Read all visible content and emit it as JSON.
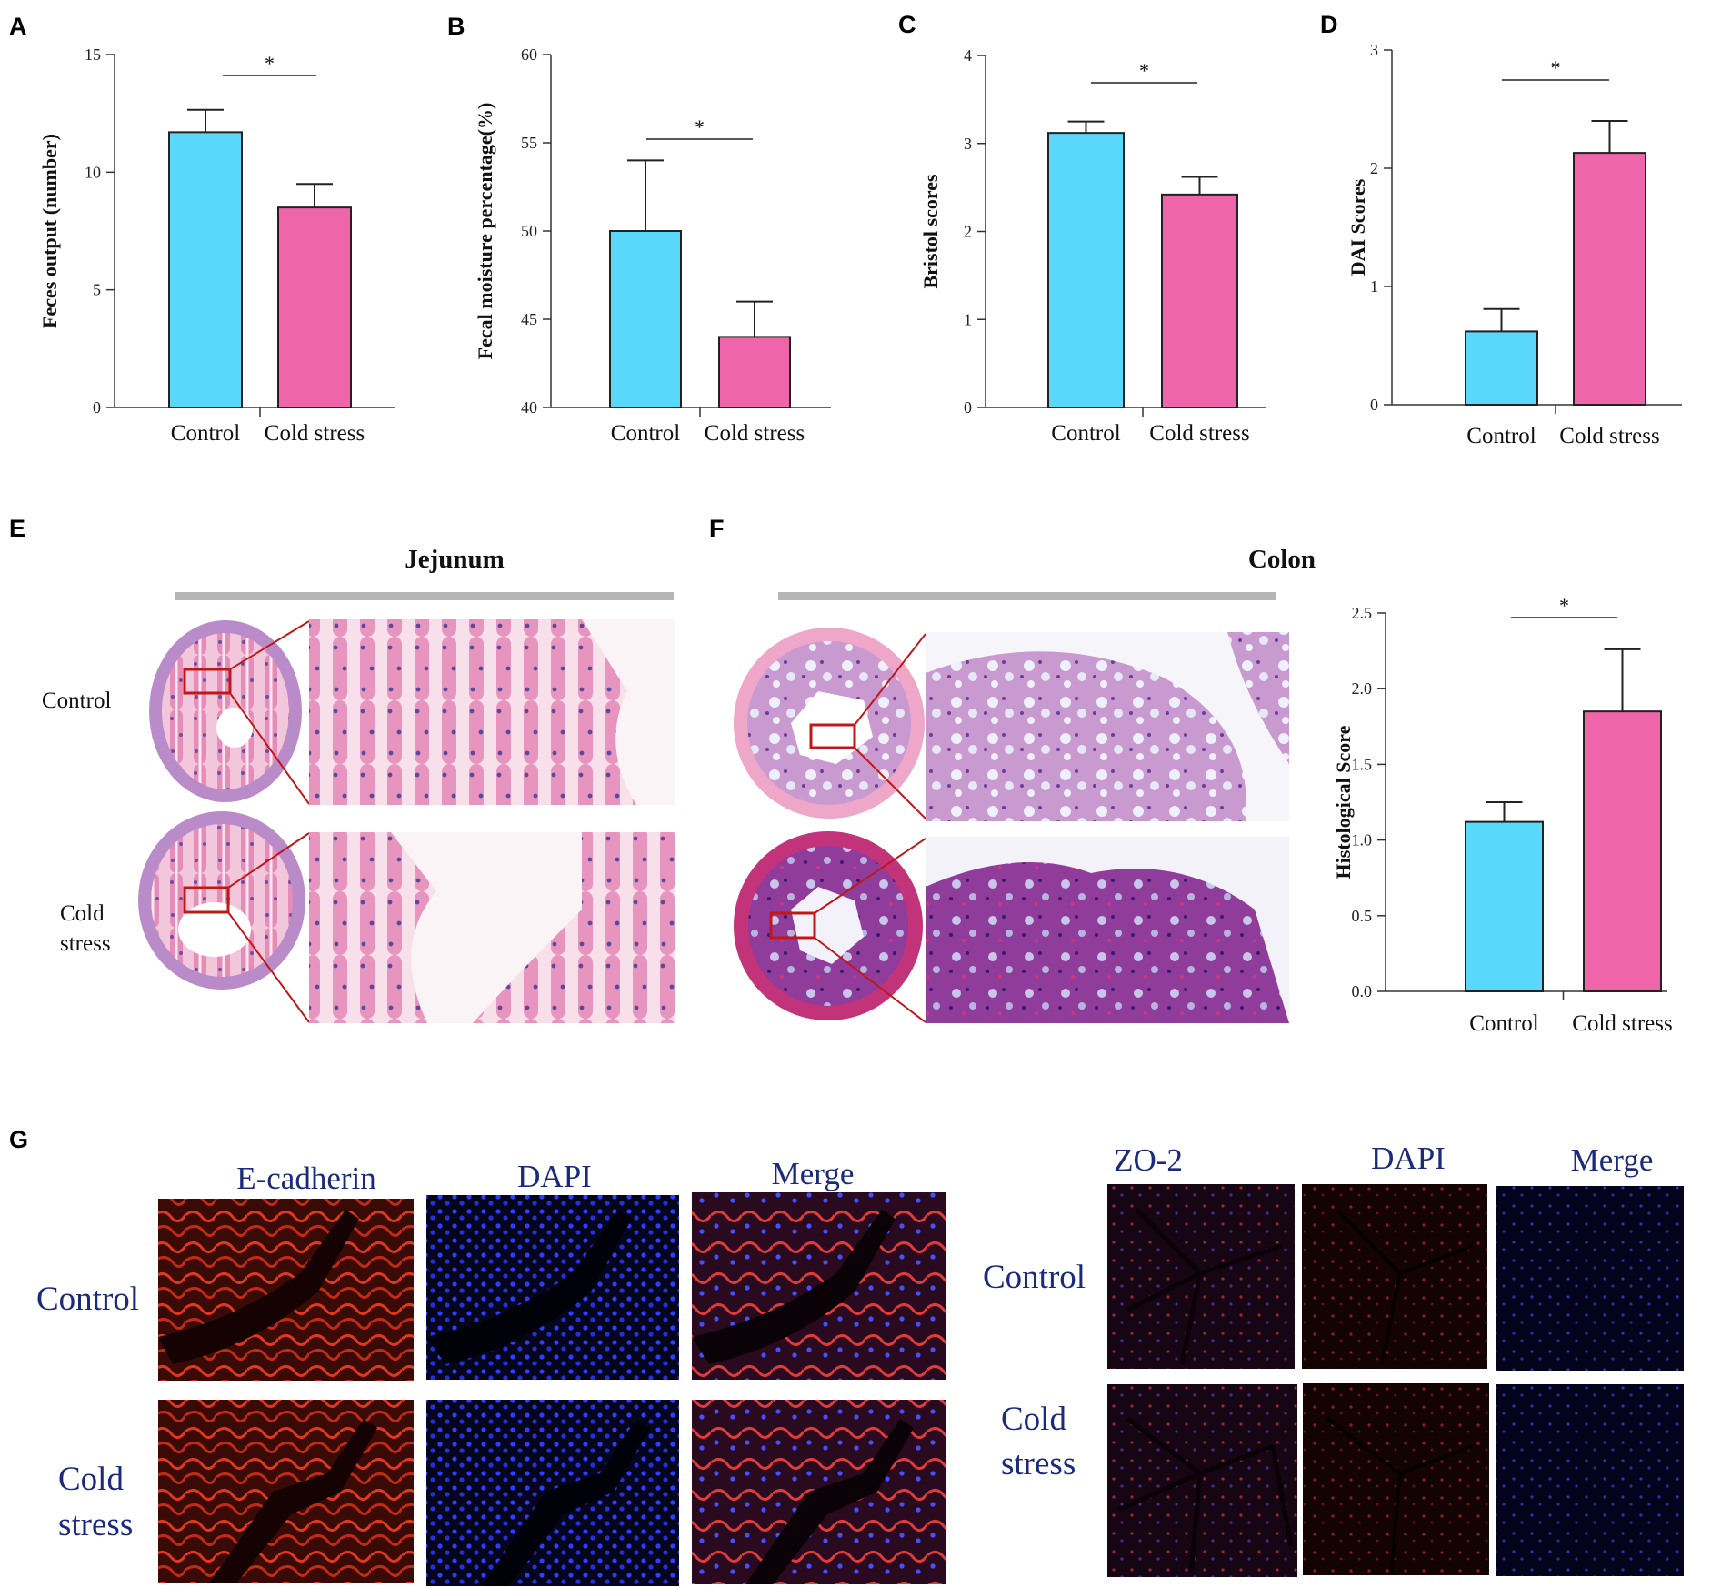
{
  "panels": {
    "A": "A",
    "B": "B",
    "C": "C",
    "D": "D",
    "E": "E",
    "F": "F",
    "G": "G"
  },
  "significance_mark": "*",
  "chart_data": [
    {
      "panel": "A",
      "type": "bar",
      "categories": [
        "Control",
        "Cold stress"
      ],
      "values": [
        11.7,
        8.5
      ],
      "errors": [
        0.95,
        1.0
      ],
      "ylabel": "Feces output (number)",
      "ylim": [
        0,
        15
      ],
      "yticks": [
        "0",
        "5",
        "10",
        "15"
      ],
      "colors": [
        "#5ad8fb",
        "#ef65aa"
      ]
    },
    {
      "panel": "B",
      "type": "bar",
      "categories": [
        "Control",
        "Cold stress"
      ],
      "values": [
        50,
        44
      ],
      "errors": [
        4.0,
        2.0
      ],
      "ylabel": "Fecal moisture percentage(%)",
      "ylim": [
        40,
        60
      ],
      "yticks": [
        "40",
        "45",
        "50",
        "55",
        "60"
      ],
      "colors": [
        "#5ad8fb",
        "#ef65aa"
      ]
    },
    {
      "panel": "C",
      "type": "bar",
      "categories": [
        "Control",
        "Cold stress"
      ],
      "values": [
        3.12,
        2.42
      ],
      "errors": [
        0.13,
        0.2
      ],
      "ylabel": "Bristol scores",
      "ylim": [
        0,
        4
      ],
      "yticks": [
        "0",
        "1",
        "2",
        "3",
        "4"
      ],
      "colors": [
        "#5ad8fb",
        "#ef65aa"
      ]
    },
    {
      "panel": "D",
      "type": "bar",
      "categories": [
        "Control",
        "Cold stress"
      ],
      "values": [
        0.62,
        2.13
      ],
      "errors": [
        0.19,
        0.27
      ],
      "ylabel": "DAI Scores",
      "ylim": [
        0,
        3
      ],
      "yticks": [
        "0",
        "1",
        "2",
        "3"
      ],
      "colors": [
        "#5ad8fb",
        "#ef65aa"
      ]
    },
    {
      "panel": "F",
      "type": "bar",
      "categories": [
        "Control",
        "Cold stress"
      ],
      "values": [
        1.12,
        1.85
      ],
      "errors": [
        0.13,
        0.41
      ],
      "ylabel": "Histological Score",
      "ylim": [
        0,
        2.5
      ],
      "yticks": [
        "0.0",
        "0.5",
        "1.0",
        "1.5",
        "2.0",
        "2.5"
      ],
      "colors": [
        "#5ad8fb",
        "#ef65aa"
      ]
    }
  ],
  "histology": {
    "jejunum_title": "Jejunum",
    "colon_title": "Colon",
    "row_control": "Control",
    "row_cold_1": "Cold",
    "row_cold_2": "stress"
  },
  "immunofluorescence": {
    "left_columns": [
      "E-cadherin",
      "DAPI",
      "Merge"
    ],
    "right_columns": [
      "ZO-2",
      "DAPI",
      "Merge"
    ],
    "row_control": "Control",
    "row_cold_1": "Cold",
    "row_cold_2": "stress"
  }
}
